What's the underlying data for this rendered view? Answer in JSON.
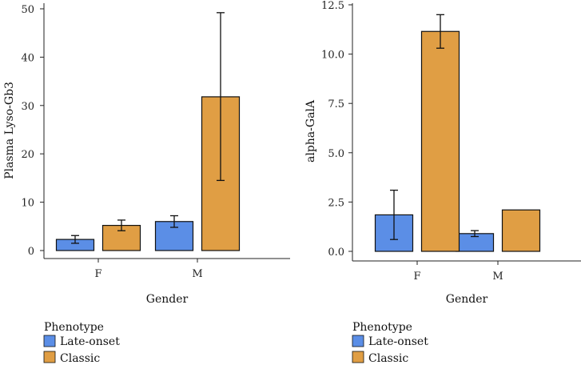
{
  "chart_data": [
    {
      "type": "bar",
      "categories": [
        "F",
        "M"
      ],
      "xlabel": "Gender",
      "ylabel": "Plasma Lyso-Gb3",
      "ylim": [
        0,
        50
      ],
      "yticks": [
        0,
        10,
        20,
        30,
        40,
        50
      ],
      "ytick_labels": [
        "0",
        "10",
        "20",
        "30",
        "40",
        "50"
      ],
      "series": [
        {
          "name": "Late-onset",
          "values": [
            2.3,
            6.0
          ],
          "err_low": [
            1.5,
            4.8
          ],
          "err_high": [
            3.1,
            7.2
          ]
        },
        {
          "name": "Classic",
          "values": [
            5.2,
            31.8
          ],
          "err_low": [
            4.1,
            14.5
          ],
          "err_high": [
            6.3,
            49.2
          ]
        }
      ],
      "legend_title": "Phenotype",
      "legend_position": "bottom-left"
    },
    {
      "type": "bar",
      "categories": [
        "F",
        "M"
      ],
      "xlabel": "Gender",
      "ylabel": "alpha-GalA",
      "ylim": [
        0,
        12.5
      ],
      "yticks": [
        0,
        2.5,
        5,
        7.5,
        10,
        12.5
      ],
      "ytick_labels": [
        "0.0",
        "2.5",
        "5.0",
        "7.5",
        "10.0",
        "12.5"
      ],
      "series": [
        {
          "name": "Late-onset",
          "values": [
            1.85,
            0.9
          ],
          "err_low": [
            0.6,
            0.75
          ],
          "err_high": [
            3.1,
            1.05
          ]
        },
        {
          "name": "Classic",
          "values": [
            11.15,
            2.1
          ],
          "err_low": [
            10.3,
            null
          ],
          "err_high": [
            12.0,
            null
          ]
        }
      ],
      "legend_title": "Phenotype",
      "legend_position": "bottom-left"
    }
  ],
  "colors": {
    "late_onset": "#5b8ee6",
    "classic": "#e09e44"
  }
}
